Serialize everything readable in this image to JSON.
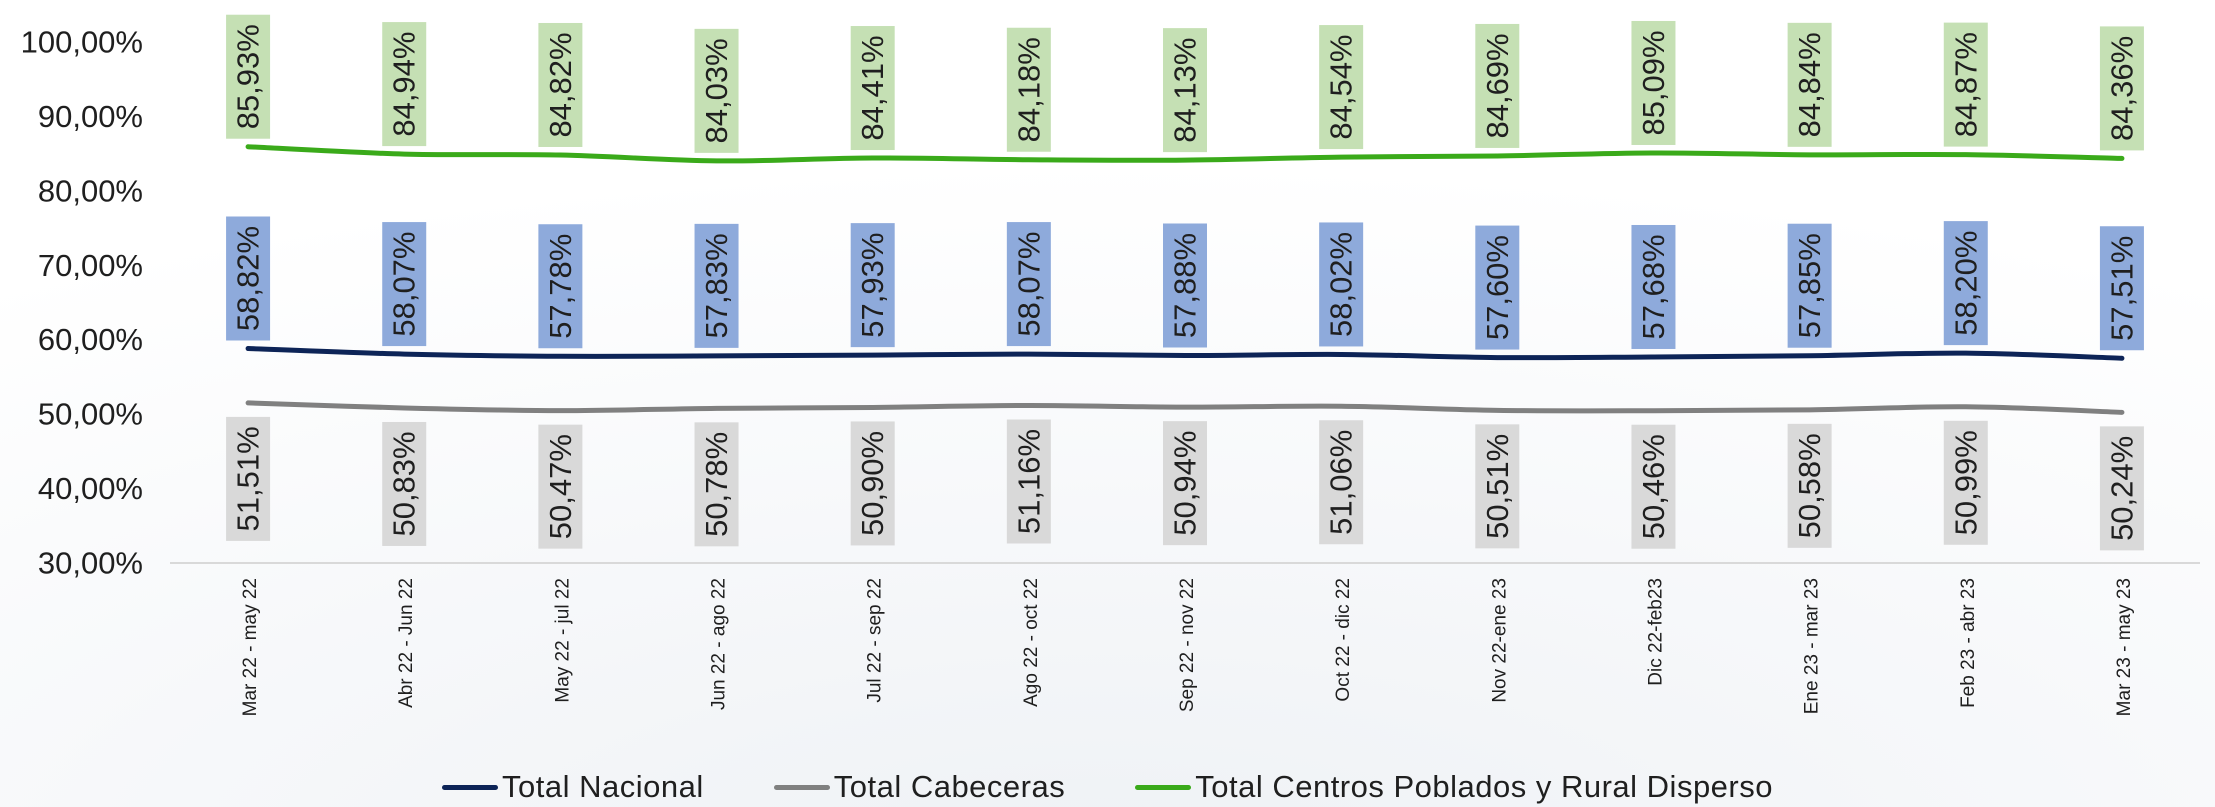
{
  "chart_data": {
    "type": "line",
    "title": "",
    "xlabel": "",
    "ylabel": "",
    "ylim": [
      30,
      100
    ],
    "y_ticks": [
      "30,00%",
      "40,00%",
      "50,00%",
      "60,00%",
      "70,00%",
      "80,00%",
      "90,00%",
      "100,00%"
    ],
    "grid": false,
    "legend_position": "bottom",
    "categories": [
      "Mar 22 - may 22",
      "Abr 22 - Jun 22",
      "May 22 - jul 22",
      "Jun 22 - ago 22",
      "Jul 22 - sep 22",
      "Ago 22 - oct 22",
      "Sep 22 - nov 22",
      "Oct 22 - dic 22",
      "Nov 22-ene 23",
      "Dic 22-feb23",
      "Ene 23 - mar 23",
      "Feb 23 - abr 23",
      "Mar 23 - may 23"
    ],
    "series": [
      {
        "name": "Total Nacional",
        "color": "#0d2457",
        "label_bg": "#8eaadb",
        "label_position": "above",
        "values": [
          58.82,
          58.07,
          57.78,
          57.83,
          57.93,
          58.07,
          57.88,
          58.02,
          57.6,
          57.68,
          57.85,
          58.2,
          57.51
        ],
        "labels": [
          "58,82%",
          "58,07%",
          "57,78%",
          "57,83%",
          "57,93%",
          "58,07%",
          "57,88%",
          "58,02%",
          "57,60%",
          "57,68%",
          "57,85%",
          "58,20%",
          "57,51%"
        ]
      },
      {
        "name": "Total Cabeceras",
        "color": "#808080",
        "label_bg": "#d9d9d9",
        "label_position": "below",
        "values": [
          51.51,
          50.83,
          50.47,
          50.78,
          50.9,
          51.16,
          50.94,
          51.06,
          50.51,
          50.46,
          50.58,
          50.99,
          50.24
        ],
        "labels": [
          "51,51%",
          "50,83%",
          "50,47%",
          "50,78%",
          "50,90%",
          "51,16%",
          "50,94%",
          "51,06%",
          "50,51%",
          "50,46%",
          "50,58%",
          "50,99%",
          "50,24%"
        ]
      },
      {
        "name": "Total Centros Poblados y Rural Disperso",
        "color": "#3aaa1a",
        "label_bg": "#c5e0b4",
        "label_position": "above",
        "values": [
          85.93,
          84.94,
          84.82,
          84.03,
          84.41,
          84.18,
          84.13,
          84.54,
          84.69,
          85.09,
          84.84,
          84.87,
          84.36
        ],
        "labels": [
          "85,93%",
          "84,94%",
          "84,82%",
          "84,03%",
          "84,41%",
          "84,18%",
          "84,13%",
          "84,54%",
          "84,69%",
          "85,09%",
          "84,84%",
          "84,87%",
          "84,36%"
        ]
      }
    ]
  }
}
